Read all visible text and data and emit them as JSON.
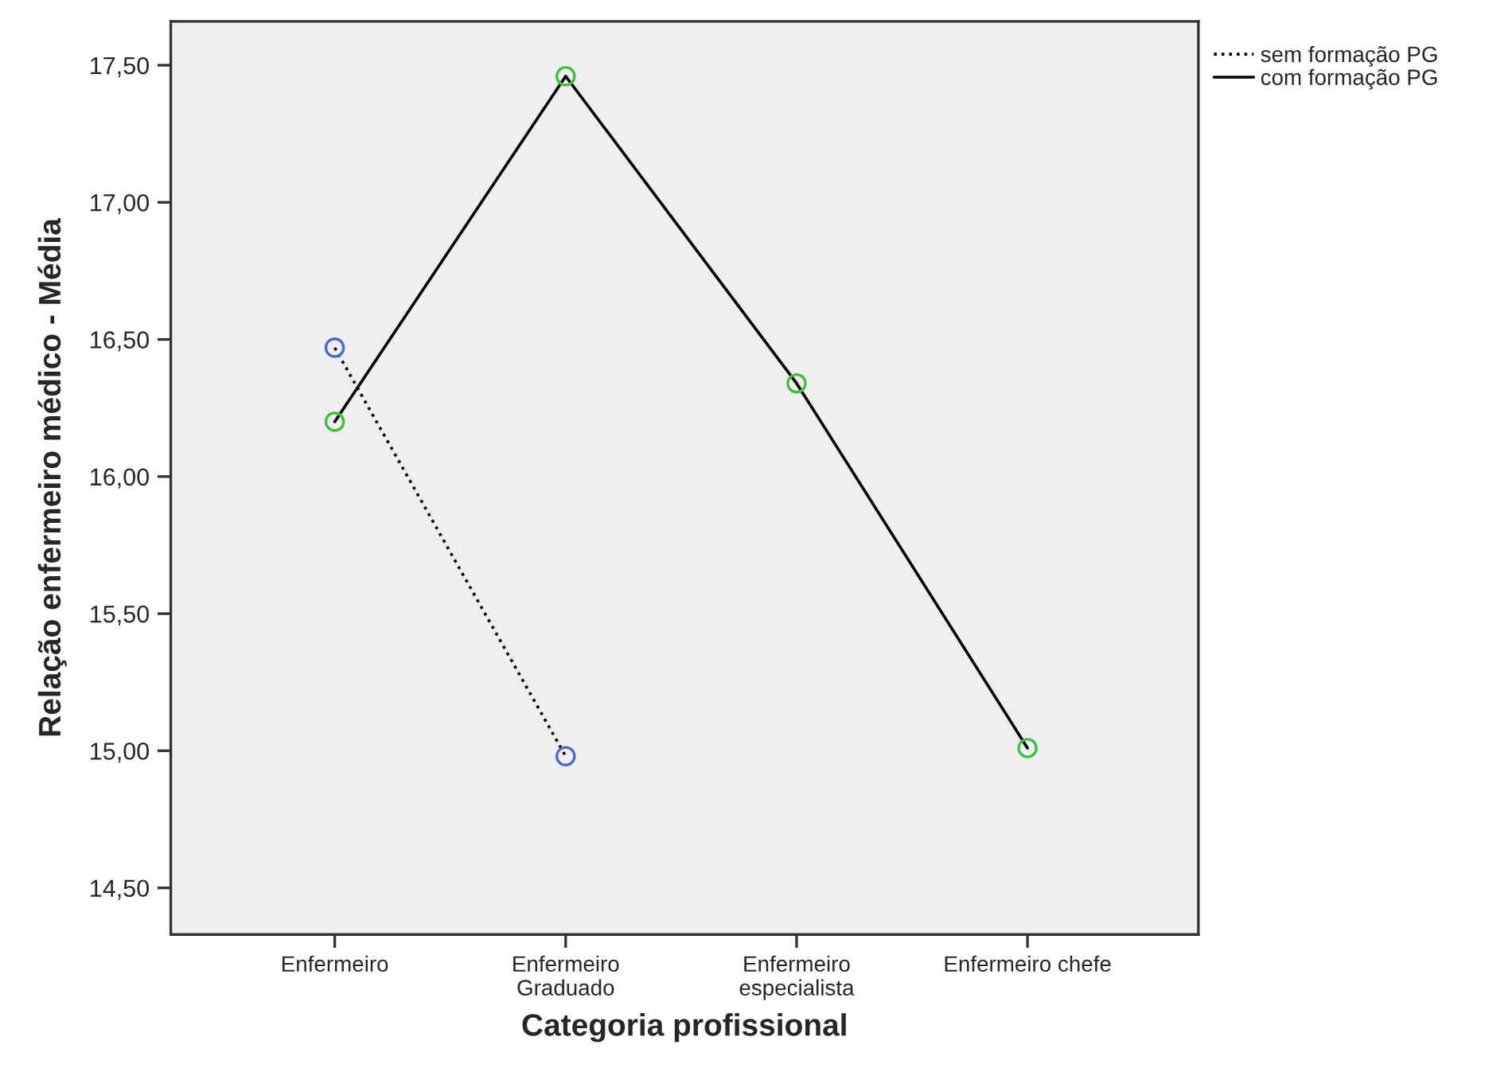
{
  "chart_data": {
    "type": "line",
    "xlabel": "Categoria profissional",
    "ylabel": "Relação enfermeiro médico - Média",
    "categories": [
      "Enfermeiro",
      "Enfermeiro\nGraduado",
      "Enfermeiro\nespecialista",
      "Enfermeiro chefe"
    ],
    "series": [
      {
        "name": "sem formação PG",
        "color": "#000000",
        "colors": [
          "#5068c8",
          "#5068c8",
          null,
          null
        ],
        "line_style": "dotted",
        "values": [
          16.47,
          14.98,
          null,
          null
        ]
      },
      {
        "name": "com formação PG",
        "color": "#000000",
        "colors": [
          "#40c040",
          "#40c040",
          "#40c040",
          "#40c040"
        ],
        "line_style": "solid",
        "values": [
          16.2,
          17.46,
          16.34,
          15.01
        ]
      }
    ],
    "ylim": [
      14.33,
      17.66
    ],
    "yticks": [
      {
        "value": 14.5,
        "label": "14,50"
      },
      {
        "value": 15.0,
        "label": "15,00"
      },
      {
        "value": 15.5,
        "label": "15,50"
      },
      {
        "value": 16.0,
        "label": "16,00"
      },
      {
        "value": 16.5,
        "label": "16,50"
      },
      {
        "value": 17.0,
        "label": "17,00"
      },
      {
        "value": 17.5,
        "label": "17,50"
      }
    ],
    "marker": "circle",
    "grid": false,
    "legend": "top right"
  }
}
